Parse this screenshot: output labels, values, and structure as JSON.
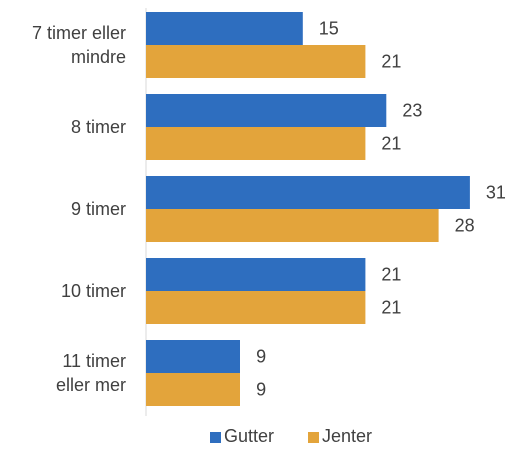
{
  "chart_data": {
    "type": "bar",
    "orientation": "horizontal",
    "categories": [
      [
        "7 timer eller",
        "mindre"
      ],
      [
        "8 timer"
      ],
      [
        "9 timer"
      ],
      [
        "10 timer"
      ],
      [
        "11 timer",
        "eller mer"
      ]
    ],
    "series": [
      {
        "name": "Gutter",
        "values": [
          15,
          23,
          31,
          21,
          9
        ],
        "color": "#2E6EBF"
      },
      {
        "name": "Jenter",
        "values": [
          21,
          21,
          28,
          21,
          9
        ],
        "color": "#E3A43B"
      }
    ],
    "xlim": [
      0,
      33
    ],
    "grid": false,
    "data_labels": true,
    "legend_position": "bottom"
  }
}
